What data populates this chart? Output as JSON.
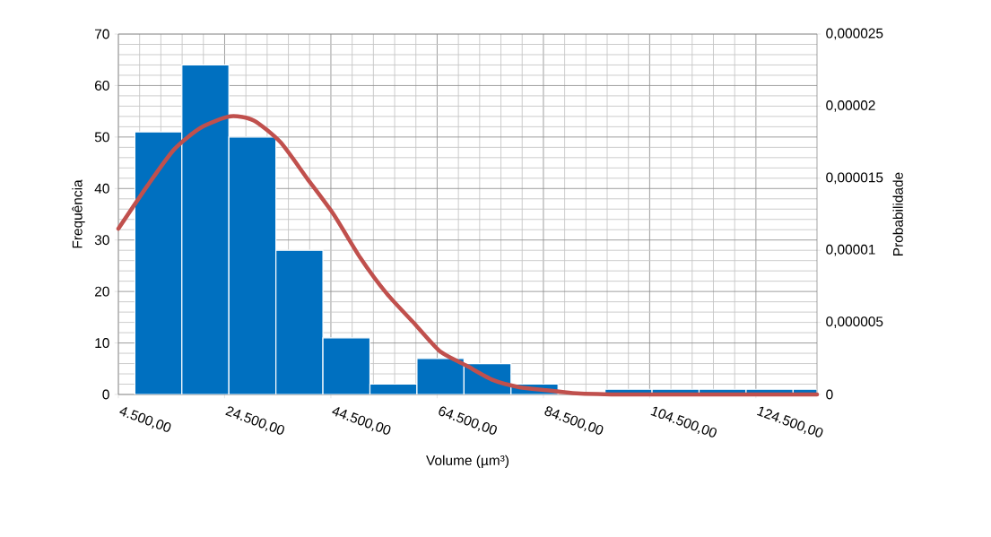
{
  "chart_data": {
    "type": "histogram",
    "xlabel": "Volume (µm³)",
    "ylabel": "Frequência",
    "y2label": "Probabilidade",
    "xlim": [
      4500,
      136000
    ],
    "xticks": [
      {
        "value": 4500,
        "label": "4.500,00"
      },
      {
        "value": 24500,
        "label": "24.500,00"
      },
      {
        "value": 44500,
        "label": "44.500,00"
      },
      {
        "value": 64500,
        "label": "64.500,00"
      },
      {
        "value": 84500,
        "label": "84.500,00"
      },
      {
        "value": 104500,
        "label": "104.500,00"
      },
      {
        "value": 124500,
        "label": "124.500,00"
      }
    ],
    "ylim": [
      0,
      70
    ],
    "yticks": [
      0,
      10,
      20,
      30,
      40,
      50,
      60,
      70
    ],
    "y2lim": [
      0,
      2.5e-05
    ],
    "y2ticks": [
      0,
      {
        "value": 5e-06,
        "label": "0,000005"
      },
      {
        "value": 1e-05,
        "label": "0,00001"
      },
      {
        "value": 1.5e-05,
        "label": "0,000015"
      },
      {
        "value": 2e-05,
        "label": "0,00002"
      },
      {
        "value": 2.5e-05,
        "label": "0,000025"
      }
    ],
    "grid": true,
    "series": [
      {
        "color": "#0070c0",
        "bins": [
          7600,
          16450,
          25300,
          34150,
          43000,
          51850,
          60700,
          69550,
          78400,
          87250,
          96100,
          104950,
          113800,
          122650,
          131500,
          136000
        ],
        "values": [
          51,
          64,
          50,
          28,
          11,
          2,
          7,
          6,
          2,
          0,
          1,
          1,
          1,
          1,
          1
        ]
      },
      {
        "type": "line",
        "axis": "y2",
        "color": "#c0504d",
        "x": [
          4500,
          10000,
          15000,
          20000,
          25600,
          30000,
          35000,
          40000,
          45000,
          50000,
          55000,
          60000,
          65000,
          70000,
          75000,
          80000,
          85000,
          90000,
          100000,
          136000
        ],
        "values": [
          1.15e-05,
          1.45e-05,
          1.7e-05,
          1.85e-05,
          1.93e-05,
          1.9e-05,
          1.75e-05,
          1.5e-05,
          1.25e-05,
          9.5e-06,
          7e-06,
          5e-06,
          3e-06,
          2e-06,
          1e-06,
          5e-07,
          3e-07,
          1e-07,
          0,
          0
        ]
      }
    ]
  }
}
